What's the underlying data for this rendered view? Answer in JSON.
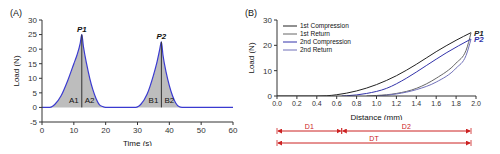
{
  "chart_data": [
    {
      "type": "area",
      "title": "(A)",
      "x_label": "Time (s)",
      "y_label": "Load (N)",
      "color": "#3a3ad0",
      "x": [
        0,
        2,
        3,
        4,
        6,
        8,
        10,
        11,
        12,
        12.5,
        13,
        14,
        15,
        16,
        17,
        18,
        19,
        20,
        25,
        29,
        30,
        31,
        33,
        35,
        36,
        37,
        37.5,
        38,
        39,
        40,
        41,
        42,
        43,
        44,
        50,
        60
      ],
      "values": [
        0,
        0,
        0.2,
        1,
        4,
        9,
        15,
        18,
        22,
        25,
        21,
        15,
        10,
        6,
        3,
        1,
        0.3,
        0,
        0,
        0,
        0.2,
        1,
        4.5,
        11,
        15,
        20,
        22.5,
        18,
        12,
        7.5,
        4,
        1.5,
        0.3,
        0,
        0,
        0
      ],
      "xlim": [
        0,
        60
      ],
      "xticks": [
        0,
        10,
        20,
        30,
        40,
        50,
        60
      ],
      "ylim": [
        -5,
        30
      ],
      "yticks": [
        -5,
        0,
        5,
        10,
        15,
        20,
        25,
        30
      ],
      "peaks": [
        {
          "label": "P1",
          "x": 12.5,
          "y": 25,
          "areas": [
            "A1",
            "A2"
          ]
        },
        {
          "label": "P2",
          "x": 37.5,
          "y": 22.5,
          "areas": [
            "B1",
            "B2"
          ]
        }
      ]
    },
    {
      "type": "line",
      "title": "(B)",
      "x_label": "Distance (mm)",
      "y_label": "Load (N)",
      "legend": "upper left",
      "xlim": [
        0,
        2
      ],
      "xticks": [
        {
          "value": 0,
          "label": "0.0"
        },
        0.2,
        0.4,
        0.6,
        0.8,
        {
          "value": 1,
          "label": "1.0"
        },
        1.2,
        1.4,
        1.6,
        1.8,
        {
          "value": 2,
          "label": "2.0"
        }
      ],
      "ylim": [
        0,
        30
      ],
      "yticks": [
        0,
        5,
        10,
        15,
        20,
        25,
        30
      ],
      "series": [
        {
          "name": "1st Compression",
          "color": "#222222",
          "line_style": "solid",
          "end_label": "P1",
          "x": [
            0,
            0.2,
            0.4,
            0.5,
            0.6,
            0.8,
            1.0,
            1.2,
            1.4,
            1.6,
            1.8,
            1.95
          ],
          "values": [
            0,
            0,
            0,
            0.1,
            0.5,
            2,
            4.5,
            8,
            12.5,
            17.5,
            22,
            25
          ]
        },
        {
          "name": "1st Return",
          "color": "#666666",
          "line_style": "solid",
          "x": [
            0.9,
            1.0,
            1.2,
            1.4,
            1.6,
            1.8,
            1.9,
            1.95
          ],
          "values": [
            0,
            0.2,
            1,
            3,
            7,
            13,
            18,
            25
          ]
        },
        {
          "name": "2nd Compression",
          "color": "#3333aa",
          "line_style": "solid",
          "end_label": "P2",
          "x": [
            0.65,
            0.7,
            0.9,
            1.1,
            1.3,
            1.5,
            1.7,
            1.95
          ],
          "values": [
            0,
            0.1,
            1,
            3,
            7,
            12,
            17,
            22.5
          ]
        },
        {
          "name": "2nd Return",
          "color": "#7070b8",
          "line_style": "solid",
          "x": [
            1.0,
            1.2,
            1.4,
            1.6,
            1.8,
            1.9,
            1.95
          ],
          "values": [
            0,
            0.8,
            2.5,
            5.5,
            11,
            16,
            22.5
          ]
        }
      ],
      "spans": [
        {
          "label": "D1",
          "from": 0,
          "to": 0.65,
          "color": "#cc2222"
        },
        {
          "label": "D2",
          "from": 0.65,
          "to": 1.95,
          "color": "#cc2222"
        },
        {
          "label": "DT",
          "from": 0,
          "to": 1.95,
          "color": "#cc2222"
        }
      ]
    }
  ]
}
